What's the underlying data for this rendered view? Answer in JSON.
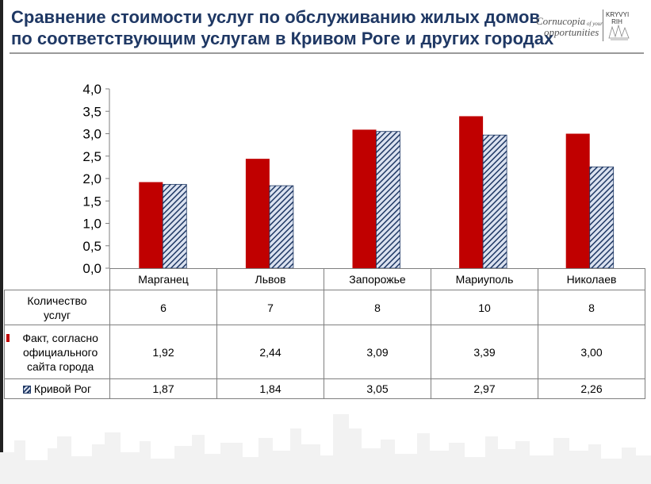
{
  "title": {
    "line1": "Сравнение стоимости услуг по обслуживанию жилых домов",
    "line2": "по соответствующим услугам в Кривом Роге и других городах"
  },
  "logo": {
    "word1": "Cornucopia",
    "word1_small": "of your",
    "word2": "opportunities",
    "city_line1": "KRYVYI",
    "city_line2": "RIH"
  },
  "chart_data": {
    "type": "bar",
    "categories": [
      "Марганец",
      "Львов",
      "Запорожье",
      "Мариуполь",
      "Николаев"
    ],
    "series": [
      {
        "name": "Факт, согласно официального сайта города",
        "values": [
          1.92,
          2.44,
          3.09,
          3.39,
          3.0
        ],
        "color": "#c00000",
        "pattern": "solid"
      },
      {
        "name": "Кривой Рог",
        "values": [
          1.87,
          1.84,
          3.05,
          2.97,
          2.26
        ],
        "color": "#1f3864",
        "pattern": "diagonal-hatch"
      }
    ],
    "ylim": [
      0,
      4
    ],
    "yticks": [
      "0,0",
      "0,5",
      "1,0",
      "1,5",
      "2,0",
      "2,5",
      "3,0",
      "3,5",
      "4,0"
    ],
    "grid": false,
    "title": "",
    "xlabel": "",
    "ylabel": ""
  },
  "table": {
    "count_label_line1": "Количество",
    "count_label_line2": "услуг",
    "counts": [
      "6",
      "7",
      "8",
      "10",
      "8"
    ],
    "fact_label": "Факт, согласно официального сайта города",
    "fact_values": [
      "1,92",
      "2,44",
      "3,09",
      "3,39",
      "3,00"
    ],
    "kr_label": "Кривой Рог",
    "kr_values": [
      "1,87",
      "1,84",
      "3,05",
      "2,97",
      "2,26"
    ]
  }
}
